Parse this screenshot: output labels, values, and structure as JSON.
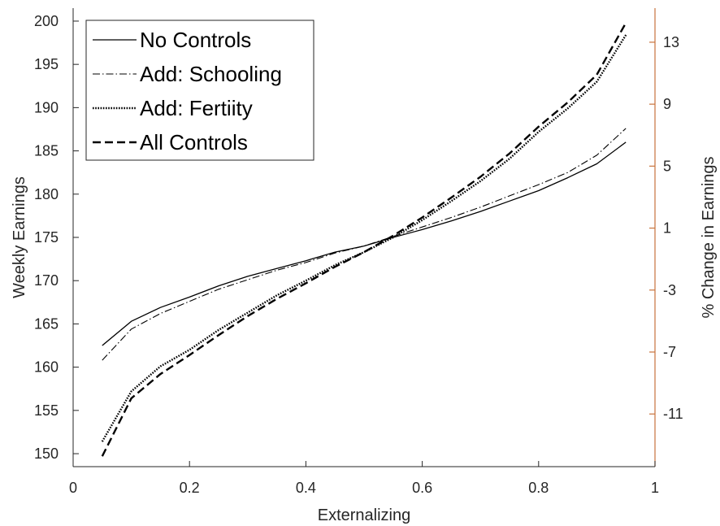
{
  "chart_data": {
    "type": "line",
    "xlabel": "Externalizing",
    "ylabel": "Weekly Earnings",
    "y2label": "% Change in Earnings",
    "xlim": [
      0,
      1
    ],
    "ylim": [
      148.5,
      201.5
    ],
    "y2lim": [
      -14.4,
      15.2
    ],
    "xticks": [
      0,
      0.2,
      0.4,
      0.6,
      0.8,
      1
    ],
    "xtick_labels": [
      "0",
      "0.2",
      "0.4",
      "0.6",
      "0.8",
      "1"
    ],
    "yticks": [
      150,
      155,
      160,
      165,
      170,
      175,
      180,
      185,
      190,
      195,
      200
    ],
    "ytick_labels": [
      "150",
      "155",
      "160",
      "165",
      "170",
      "175",
      "180",
      "185",
      "190",
      "195",
      "200"
    ],
    "y2ticks": [
      -11,
      -7,
      -3,
      1,
      5,
      9,
      13
    ],
    "y2tick_labels": [
      "-11",
      "-7",
      "-3",
      "1",
      "5",
      "9",
      "13"
    ],
    "right_axis_color": "#c8733c",
    "grid": false,
    "legend_position": "top-left",
    "x": [
      0.05,
      0.1,
      0.15,
      0.2,
      0.25,
      0.3,
      0.35,
      0.4,
      0.45,
      0.5,
      0.55,
      0.6,
      0.65,
      0.7,
      0.75,
      0.8,
      0.85,
      0.9,
      0.95
    ],
    "series": [
      {
        "name": "No Controls",
        "dash": "solid",
        "width": 1.3,
        "values": [
          162.5,
          165.3,
          166.9,
          168.1,
          169.4,
          170.5,
          171.4,
          172.3,
          173.3,
          174.0,
          175.0,
          175.9,
          176.9,
          178.0,
          179.2,
          180.4,
          181.9,
          183.5,
          186.0
        ]
      },
      {
        "name": "Add: Schooling",
        "dash": "dashdot",
        "width": 1.1,
        "values": [
          160.8,
          164.4,
          166.2,
          167.6,
          169.0,
          170.1,
          171.2,
          172.1,
          173.2,
          174.0,
          175.1,
          176.2,
          177.3,
          178.5,
          179.8,
          181.1,
          182.5,
          184.5,
          187.6
        ]
      },
      {
        "name": "Add: Fertiity",
        "dash": "dotted",
        "width": 2.4,
        "values": [
          151.4,
          157.2,
          160.1,
          162.0,
          164.3,
          166.3,
          168.3,
          170.0,
          171.8,
          173.3,
          175.0,
          177.0,
          179.2,
          181.5,
          184.1,
          187.2,
          189.9,
          193.0,
          198.4
        ]
      },
      {
        "name": "All Controls",
        "dash": "dashed",
        "width": 2.4,
        "values": [
          149.7,
          156.4,
          159.2,
          161.4,
          163.7,
          165.9,
          167.9,
          169.7,
          171.6,
          173.3,
          175.2,
          177.3,
          179.6,
          182.0,
          184.7,
          187.8,
          190.6,
          193.8,
          199.8
        ]
      }
    ]
  }
}
